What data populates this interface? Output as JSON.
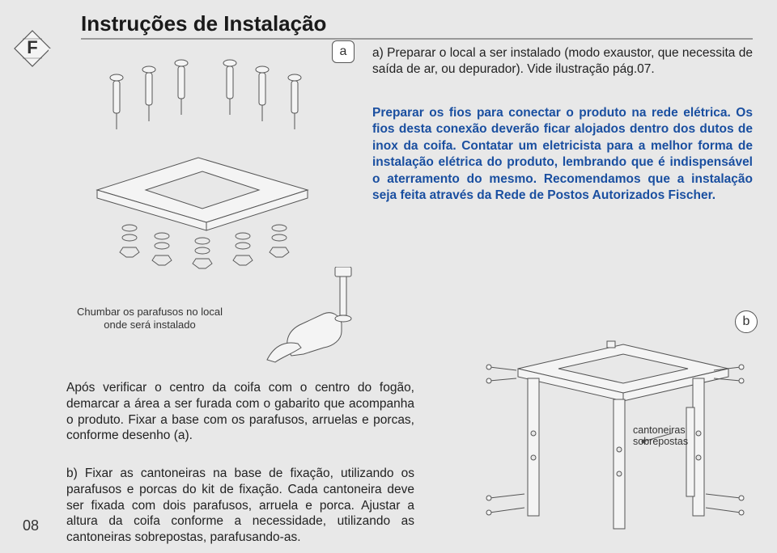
{
  "title": "Instruções de Instalação",
  "badges": {
    "a": "a",
    "b": "b"
  },
  "page_number": "08",
  "text": {
    "para_a": "a) Preparar o local a ser instalado (modo exaustor, que necessita de saída de ar, ou depurador). Vide ilustração pág.07.",
    "para_a2": "Preparar os fios para conectar o produto na rede elétrica. Os fios desta conexão deverão ficar alojados dentro dos dutos de inox da coifa. Contatar um eletricista para a melhor forma de instalação elétrica do produto, lembrando que é indispensável o aterramento do mesmo. Recomendamos que a instalação seja feita através da Rede de Postos Autorizados Fischer.",
    "caption_chumbar": "Chumbar os parafusos no local onde será instalado",
    "para_b1": "Após verificar o centro da coifa com o centro do fogão, demarcar a área a ser furada com o gabarito que acompanha o produto. Fixar a base com os parafusos, arruelas e porcas, conforme desenho (a).",
    "para_b2": "b) Fixar as cantoneiras na base de fixação, utilizando os parafusos e porcas do kit de fixação. Cada cantoneira deve ser fixada com dois parafusos, arruela e porca. Ajustar a altura da coifa conforme a necessidade, utilizando as cantoneiras sobrepostas, parafusando-as.",
    "label_cantoneiras": "cantoneiras\nsobrepostas"
  },
  "colors": {
    "bg": "#e8e8e8",
    "text": "#222222",
    "highlight": "#1a4fa0",
    "line": "#888888",
    "svg_stroke": "#555555",
    "svg_fill": "#f4f4f4"
  }
}
